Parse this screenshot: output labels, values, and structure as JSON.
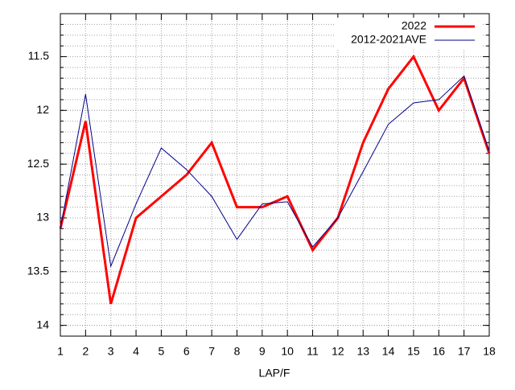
{
  "chart_data": {
    "type": "line",
    "x": [
      1,
      2,
      3,
      4,
      5,
      6,
      7,
      8,
      9,
      10,
      11,
      12,
      13,
      14,
      15,
      16,
      17,
      18
    ],
    "xlabel": "LAP/F",
    "series": [
      {
        "name": "2022",
        "color": "#ff0000",
        "width": 3,
        "values": [
          13.1,
          12.1,
          13.8,
          13.0,
          12.8,
          12.6,
          12.3,
          12.9,
          12.9,
          12.8,
          13.3,
          13.0,
          12.3,
          11.8,
          11.5,
          12.0,
          11.7,
          12.4
        ]
      },
      {
        "name": "2012-2021AVE",
        "color": "#00008b",
        "width": 1,
        "values": [
          13.1,
          11.85,
          13.45,
          12.87,
          12.35,
          12.55,
          12.8,
          13.2,
          12.87,
          12.85,
          13.27,
          13.0,
          12.57,
          12.13,
          11.93,
          11.9,
          11.68,
          12.38
        ]
      }
    ],
    "xlim": [
      1,
      18
    ],
    "xticks": [
      1,
      2,
      3,
      4,
      5,
      6,
      7,
      8,
      9,
      10,
      11,
      12,
      13,
      14,
      15,
      16,
      17,
      18
    ],
    "ylim": [
      11.1,
      14.1
    ],
    "y_reversed": true,
    "yticks": [
      11.5,
      12,
      12.5,
      13,
      13.5,
      14
    ],
    "grid": true,
    "yminor": 5,
    "legend": "upper right"
  }
}
